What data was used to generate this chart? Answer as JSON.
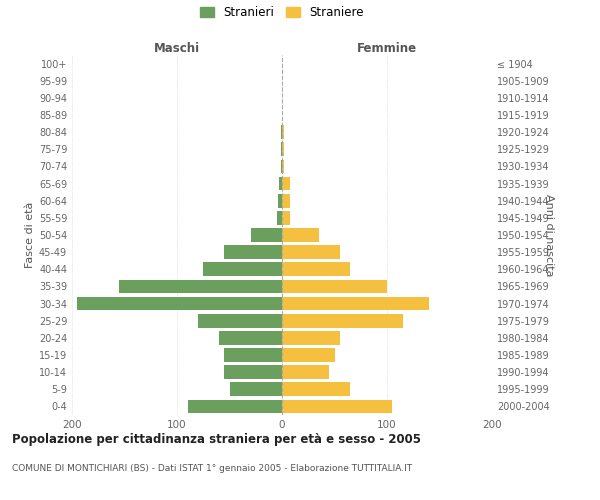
{
  "age_groups": [
    "0-4",
    "5-9",
    "10-14",
    "15-19",
    "20-24",
    "25-29",
    "30-34",
    "35-39",
    "40-44",
    "45-49",
    "50-54",
    "55-59",
    "60-64",
    "65-69",
    "70-74",
    "75-79",
    "80-84",
    "85-89",
    "90-94",
    "95-99",
    "100+"
  ],
  "birth_years": [
    "2000-2004",
    "1995-1999",
    "1990-1994",
    "1985-1989",
    "1980-1984",
    "1975-1979",
    "1970-1974",
    "1965-1969",
    "1960-1964",
    "1955-1959",
    "1950-1954",
    "1945-1949",
    "1940-1944",
    "1935-1939",
    "1930-1934",
    "1925-1929",
    "1920-1924",
    "1915-1919",
    "1910-1914",
    "1905-1909",
    "≤ 1904"
  ],
  "maschi": [
    90,
    50,
    55,
    55,
    60,
    80,
    195,
    155,
    75,
    55,
    30,
    5,
    4,
    3,
    1,
    1,
    1,
    0,
    0,
    0,
    0
  ],
  "femmine": [
    105,
    65,
    45,
    50,
    55,
    115,
    140,
    100,
    65,
    55,
    35,
    8,
    8,
    8,
    2,
    2,
    2,
    0,
    0,
    0,
    0
  ],
  "maschi_color": "#6a9f5e",
  "femmine_color": "#f5c040",
  "background_color": "#ffffff",
  "grid_color": "#cccccc",
  "title": "Popolazione per cittadinanza straniera per età e sesso - 2005",
  "subtitle": "COMUNE DI MONTICHIARI (BS) - Dati ISTAT 1° gennaio 2005 - Elaborazione TUTTITALIA.IT",
  "xlabel_left": "Maschi",
  "xlabel_right": "Femmine",
  "ylabel_left": "Fasce di età",
  "ylabel_right": "Anni di nascita",
  "legend_stranieri": "Stranieri",
  "legend_straniere": "Straniere",
  "xlim": 200,
  "bar_height": 0.8
}
